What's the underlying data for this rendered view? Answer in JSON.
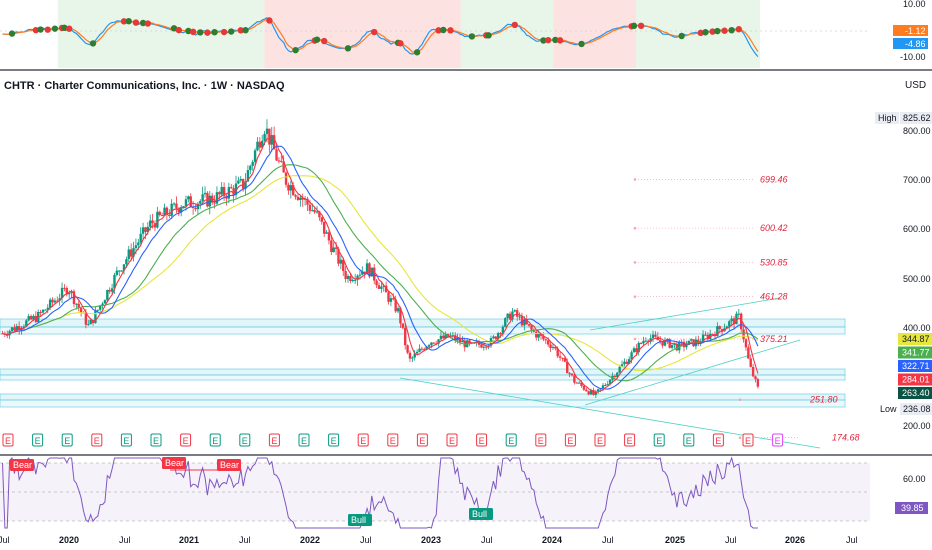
{
  "symbol_title": "CHTR · Charter Communications, Inc. · 1W · NASDAQ",
  "currency": "USD",
  "indicator_top": {
    "axis_ticks": [
      "10.00",
      "-10.00"
    ],
    "tags": [
      {
        "text": "-1.12",
        "color": "#ff7c1f"
      },
      {
        "text": "-4.86",
        "color": "#2196f3"
      }
    ],
    "shaded_bands": [
      {
        "from": "2019-12",
        "to": "2021-08",
        "color": "#e8f5e9"
      },
      {
        "from": "2021-08",
        "to": "2023-03",
        "color": "#fde2e2"
      },
      {
        "from": "2023-03",
        "to": "2023-12",
        "color": "#e8f5e9"
      },
      {
        "from": "2023-12",
        "to": "2024-08",
        "color": "#fde2e2"
      },
      {
        "from": "2024-08",
        "to": "2025-08",
        "color": "#e8f5e9"
      }
    ]
  },
  "price_axis": {
    "ticks": [
      "800.00",
      "700.00",
      "600.00",
      "500.00",
      "400.00",
      "200.00"
    ],
    "high_label": "High",
    "high_value": "825.62",
    "low_label": "Low",
    "low_value": "236.08",
    "tags": [
      {
        "text": "344.87",
        "color": "#e6e63c",
        "text_color": "#131722"
      },
      {
        "text": "341.77",
        "color": "#4caf50",
        "text_color": "#ffffff"
      },
      {
        "text": "322.71",
        "color": "#2962ff",
        "text_color": "#ffffff"
      },
      {
        "text": "284.01",
        "color": "#f23645",
        "text_color": "#ffffff"
      },
      {
        "text": "263.40",
        "color": "#0b5345",
        "text_color": "#ffffff"
      }
    ]
  },
  "fib_levels": [
    "699.46",
    "600.42",
    "530.85",
    "461.28",
    "375.21",
    "251.80",
    "174.68"
  ],
  "earnings_marker": "E",
  "rsi": {
    "axis_tick": "60.00",
    "value_tag": "39.85",
    "labels": [
      {
        "text": "Bear",
        "type": "bear"
      },
      {
        "text": "Bear",
        "type": "bear"
      },
      {
        "text": "Bear",
        "type": "bear"
      },
      {
        "text": "Bull",
        "type": "bull"
      },
      {
        "text": "Bull",
        "type": "bull"
      }
    ]
  },
  "time_axis": [
    "Jul",
    "2020",
    "Jul",
    "2021",
    "Jul",
    "2022",
    "Jul",
    "2023",
    "Jul",
    "2024",
    "Jul",
    "2025",
    "Jul",
    "2026",
    "Jul"
  ],
  "colors": {
    "up": "#089981",
    "down": "#f23645",
    "ma_fast": "#f23645",
    "ma_mid": "#2962ff",
    "ma_slow": "#4caf50",
    "ma_long": "#e6e63c",
    "zone": "#c5eef6"
  },
  "chart_data": {
    "type": "line",
    "title": "CHTR · Charter Communications, Inc. · 1W · NASDAQ",
    "xlabel": "",
    "ylabel": "USD",
    "ylim": [
      150,
      850
    ],
    "x": [
      "2019-07",
      "2019-10",
      "2020-01",
      "2020-03",
      "2020-06",
      "2020-09",
      "2020-12",
      "2021-03",
      "2021-06",
      "2021-08",
      "2021-10",
      "2022-01",
      "2022-04",
      "2022-06",
      "2022-09",
      "2022-10",
      "2022-12",
      "2023-02",
      "2023-04",
      "2023-06",
      "2023-08",
      "2023-10",
      "2023-12",
      "2024-02",
      "2024-04",
      "2024-07",
      "2024-09",
      "2024-12",
      "2025-02",
      "2025-04",
      "2025-06",
      "2025-07",
      "2025-08"
    ],
    "series": [
      {
        "name": "",
        "values": [
          390,
          420,
          480,
          400,
          520,
          610,
          650,
          660,
          690,
          810,
          700,
          630,
          500,
          520,
          430,
          330,
          370,
          380,
          360,
          370,
          430,
          390,
          360,
          290,
          260,
          330,
          380,
          360,
          370,
          395,
          420,
          320,
          263
        ]
      }
    ],
    "high": 825.62,
    "low": 236.08
  }
}
